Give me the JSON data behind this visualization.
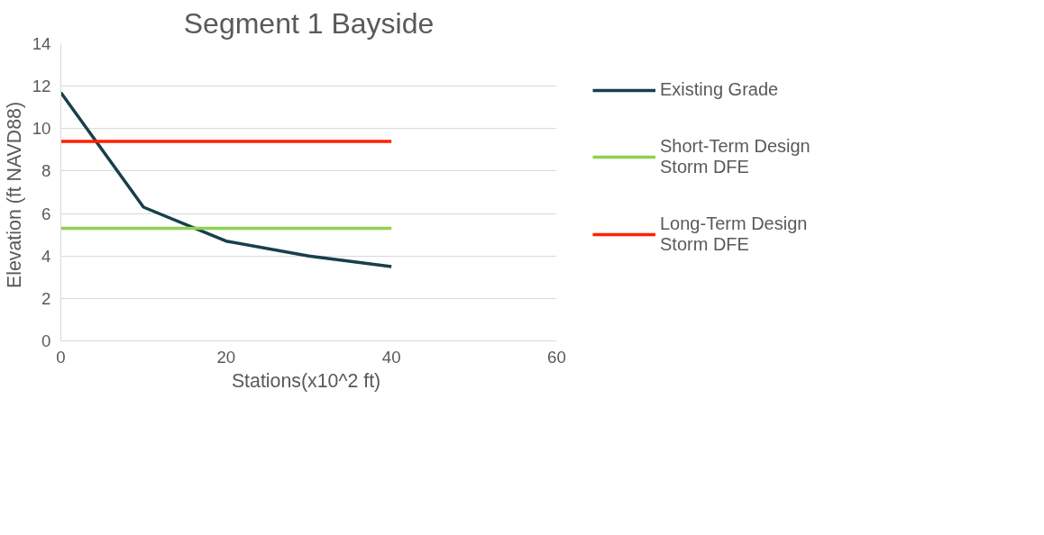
{
  "chart_data": {
    "type": "line",
    "title": "Segment 1 Bayside",
    "xlabel": "Stations(x10^2  ft)",
    "ylabel": "Elevation  (ft NAVD88)",
    "x": [
      0,
      10,
      20,
      30,
      40
    ],
    "series": [
      {
        "name": "Existing Grade",
        "color": "#17404a",
        "values": [
          11.7,
          6.3,
          4.7,
          4.0,
          3.5
        ]
      },
      {
        "name": "Short-Term Design Storm DFE",
        "color": "#92d050",
        "values": [
          5.3,
          5.3,
          5.3,
          5.3,
          5.3
        ]
      },
      {
        "name": "Long-Term Design Storm DFE",
        "color": "#ff2000",
        "values": [
          9.4,
          9.4,
          9.4,
          9.4,
          9.4
        ]
      }
    ],
    "xlim": [
      0,
      60
    ],
    "xticks": [
      0,
      20,
      40,
      60
    ],
    "ylim": [
      0,
      14
    ],
    "yticks": [
      0,
      2,
      4,
      6,
      8,
      10,
      12,
      14
    ],
    "grid": "y",
    "legend": "right",
    "marker": "none",
    "line_style": "solid"
  }
}
